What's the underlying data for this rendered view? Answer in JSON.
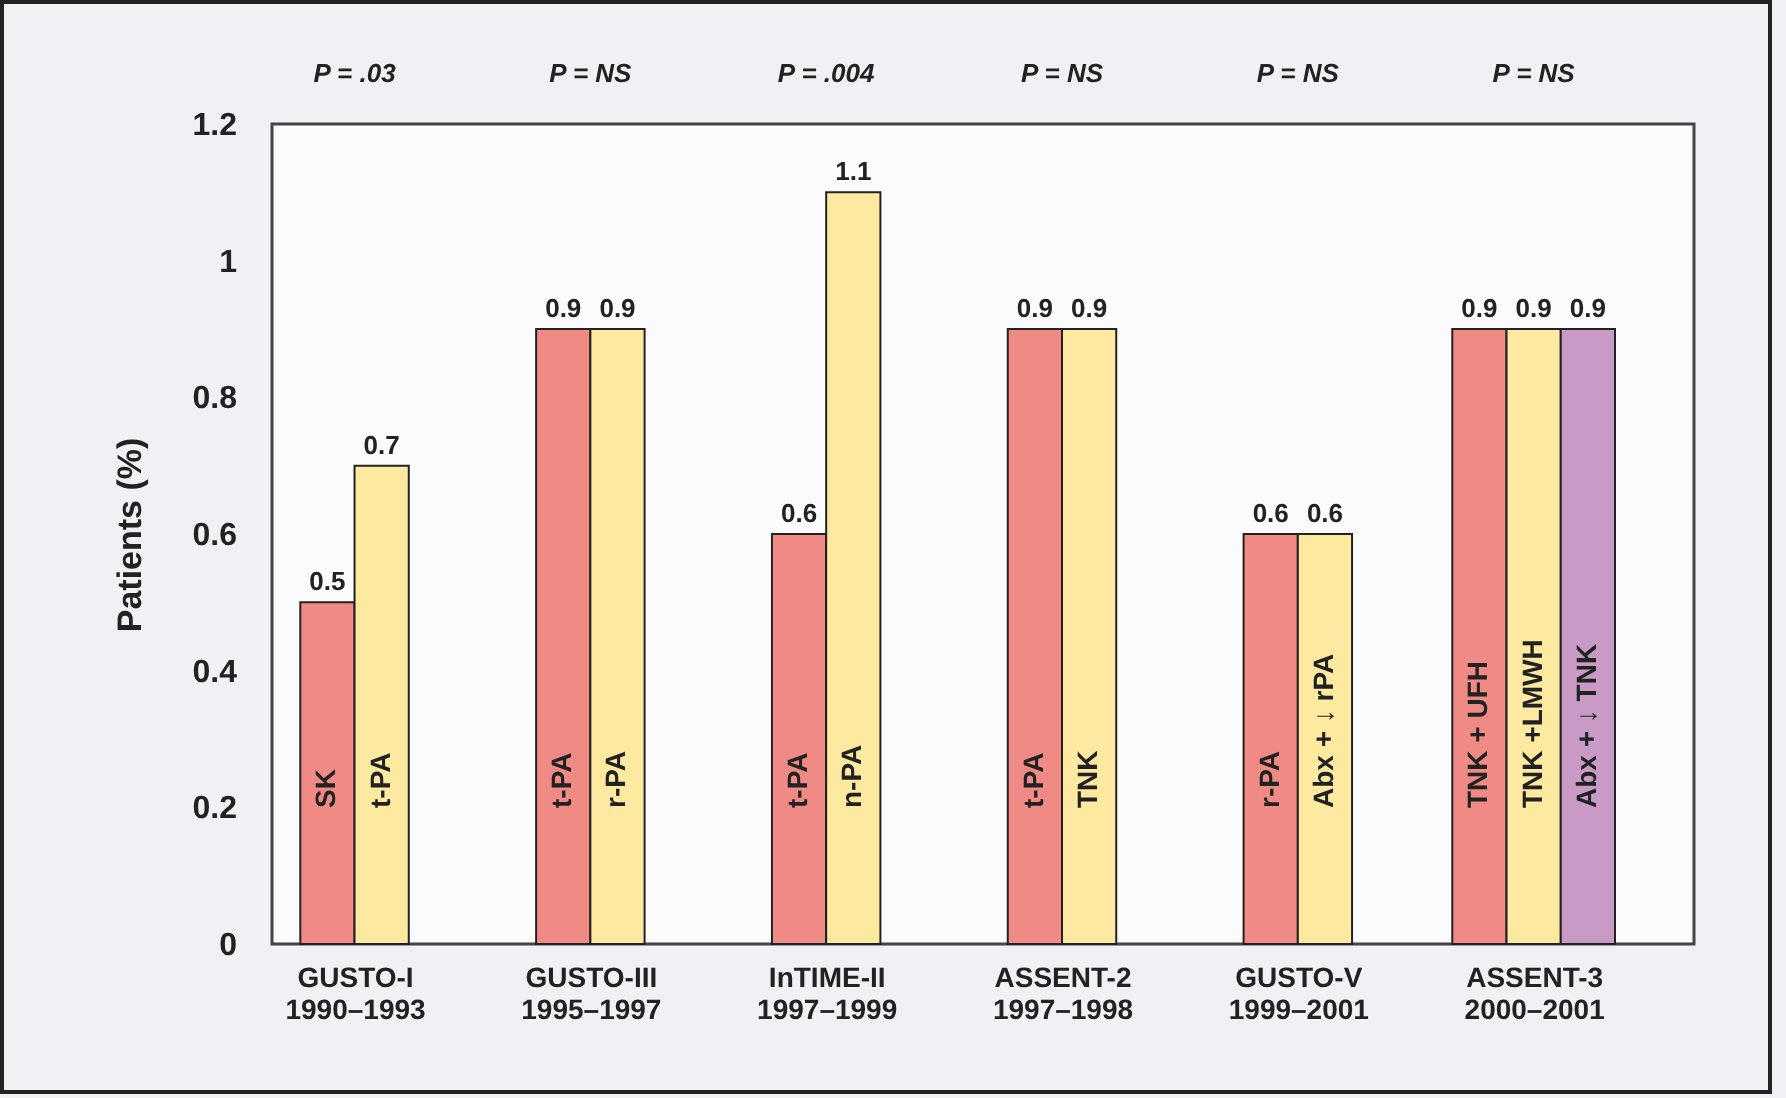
{
  "chart_data": {
    "type": "bar",
    "ylabel": "Patients (%)",
    "categories": [
      "GUSTO-I\n1990–1993",
      "GUSTO-III\n1995–1997",
      "InTIME-II\n1997–1999",
      "ASSENT-2\n1997–1998",
      "GUSTO-V\n1999–2001",
      "ASSENT-3\n2000–2001"
    ],
    "series": [
      {
        "color": "#f08a84",
        "values": [
          0.5,
          0.9,
          0.6,
          0.9,
          0.6,
          0.9
        ]
      },
      {
        "color": "#fde9a0",
        "values": [
          0.7,
          0.9,
          1.1,
          0.9,
          0.6,
          0.9
        ]
      },
      {
        "color": "#c99ac6",
        "values": [
          null,
          null,
          null,
          null,
          null,
          0.9
        ]
      }
    ],
    "ylim": [
      0,
      1.2
    ],
    "yticks": [
      0,
      0.2,
      0.4,
      0.6,
      0.8,
      1,
      1.2
    ],
    "data_labels": true,
    "annotations": [
      "P = .03",
      "P = NS",
      "P = .004",
      "P = NS",
      "P = NS",
      "P  = NS",
      "SK",
      "t-PA",
      "t-PA",
      "r-PA",
      "t-PA",
      "n-PA",
      "t-PA",
      "TNK",
      "r-PA",
      "Abx + ↓ rPA",
      "TNK + UFH",
      "TNK +LMWH",
      "Abx + ↓ TNK"
    ]
  }
}
